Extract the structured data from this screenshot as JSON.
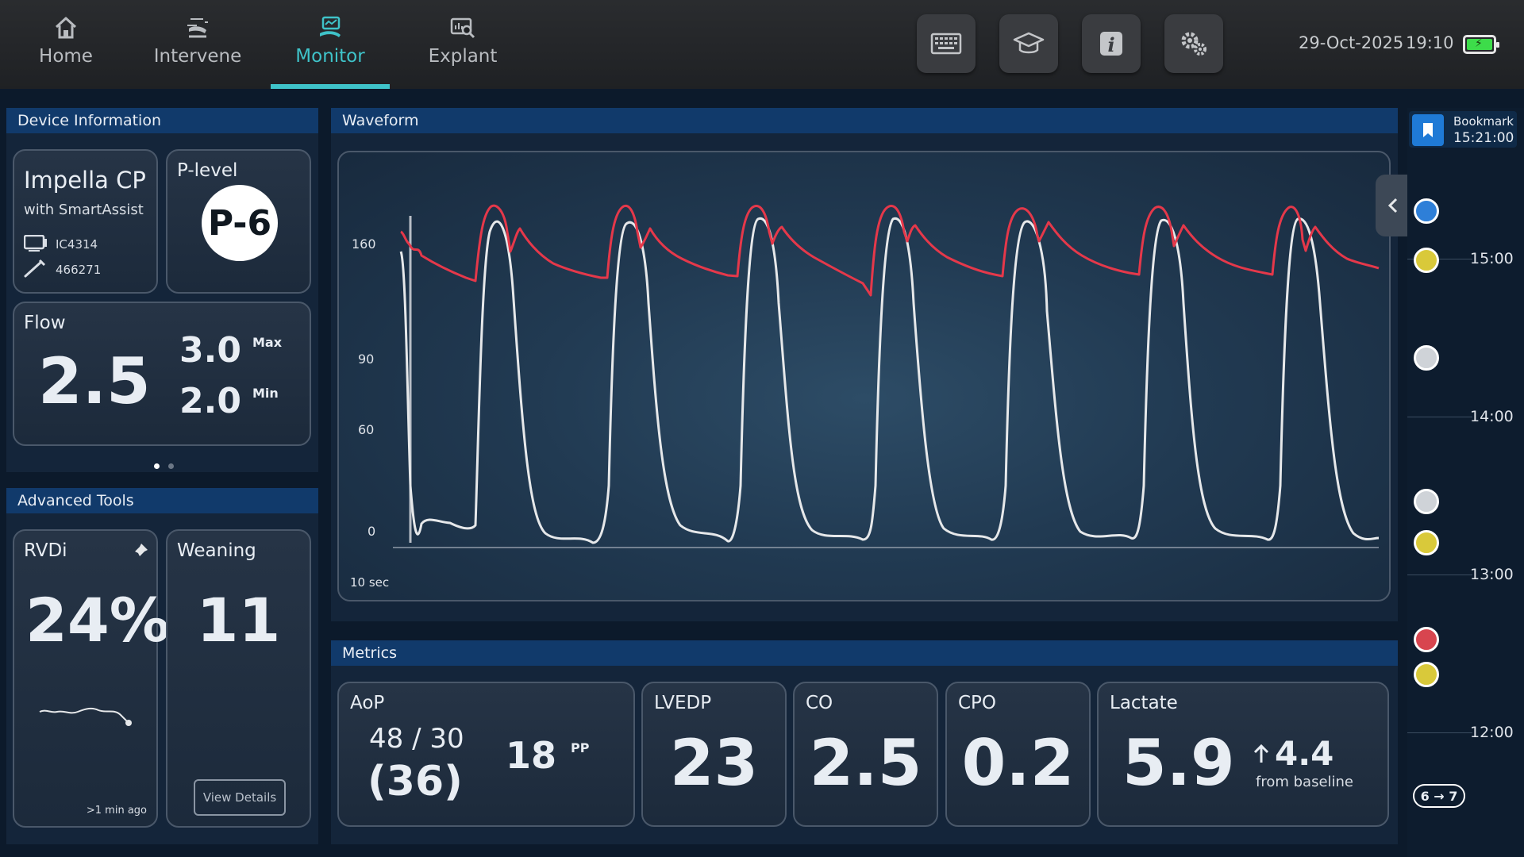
{
  "nav": {
    "tabs": [
      {
        "label": "Home",
        "icon": "home-icon"
      },
      {
        "label": "Intervene",
        "icon": "pump-icon"
      },
      {
        "label": "Monitor",
        "icon": "monitor-icon",
        "active": true
      },
      {
        "label": "Explant",
        "icon": "explant-icon"
      }
    ],
    "tools": [
      "keyboard-icon",
      "graduation-cap-icon",
      "info-icon",
      "gears-icon"
    ],
    "date": "29-Oct-2025",
    "time": "19:10",
    "battery_level": 1.0
  },
  "device": {
    "header": "Device Information",
    "name": "Impella CP",
    "subtitle": "with SmartAssist",
    "console_id": "IC4314",
    "catheter_id": "466271",
    "plevel_label": "P-level",
    "plevel_value": "P-6",
    "flow_label": "Flow",
    "flow_value": "2.5",
    "flow_max": "3.0",
    "flow_max_label": "Max",
    "flow_min": "2.0",
    "flow_min_label": "Min",
    "page_dots": 2,
    "page_active": 0
  },
  "advanced": {
    "header": "Advanced Tools",
    "rvdi_label": "RVDi",
    "rvdi_value": "24%",
    "rvdi_timestamp": ">1 min ago",
    "weaning_label": "Weaning",
    "weaning_value": "11",
    "view_details": "View Details"
  },
  "waveform": {
    "header": "Waveform",
    "y_ticks": [
      "160",
      "90",
      "60",
      "0"
    ],
    "duration_label": "10 sec",
    "colors": {
      "aortic": "#e5384a",
      "motor": "#e6e8ea"
    }
  },
  "metrics": {
    "header": "Metrics",
    "aop_label": "AoP",
    "aop_sys_dia": "48 / 30",
    "aop_mean": "(36)",
    "pp_value": "18",
    "pp_label": "PP",
    "lvedp_label": "LVEDP",
    "lvedp_value": "23",
    "co_label": "CO",
    "co_value": "2.5",
    "cpo_label": "CPO",
    "cpo_value": "0.2",
    "lactate_label": "Lactate",
    "lactate_value": "5.9",
    "lactate_delta": "4.4",
    "lactate_delta_text": "from baseline"
  },
  "timeline": {
    "bookmark_label": "Bookmark",
    "bookmark_time": "15:21:00",
    "times": [
      "15:00",
      "14:00",
      "13:00",
      "12:00"
    ],
    "events": [
      {
        "color": "#2e7fd8"
      },
      {
        "color": "#d9c93a"
      },
      {
        "color": "#cfd3d8"
      },
      {
        "color": "#cfd3d8"
      },
      {
        "color": "#d9c93a"
      },
      {
        "color": "#d8454f"
      },
      {
        "color": "#d9c93a"
      }
    ],
    "plevel_change": "6 → 7"
  }
}
